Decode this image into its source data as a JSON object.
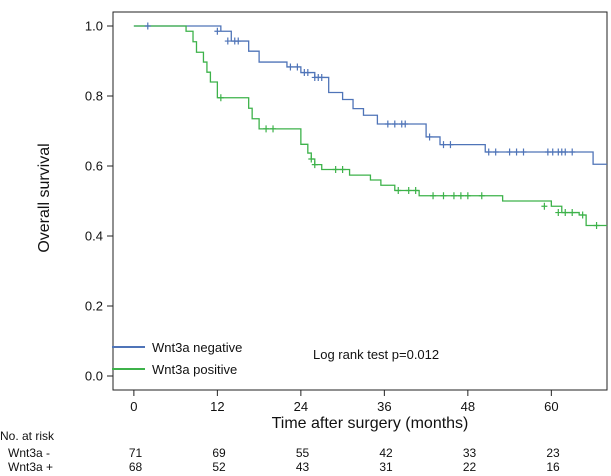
{
  "chart_data": {
    "type": "line",
    "subtype": "kaplan-meier",
    "xlabel": "Time after surgery (months)",
    "ylabel": "Overall survival",
    "xlim": [
      -3,
      68
    ],
    "ylim": [
      -0.04,
      1.04
    ],
    "x_ticks": [
      0,
      12,
      24,
      36,
      48,
      60
    ],
    "y_ticks": [
      0.0,
      0.2,
      0.4,
      0.6,
      0.8,
      1.0
    ],
    "x_tick_labels": [
      "0",
      "12",
      "24",
      "36",
      "48",
      "60"
    ],
    "y_tick_labels": [
      "0.0",
      "0.2",
      "0.4",
      "0.6",
      "0.8",
      "1.0"
    ],
    "grid": false,
    "legend_position": "bottom-left",
    "annotation": "Log rank test p=0.012",
    "series": [
      {
        "name": "Wnt3a negative",
        "color": "#4f74b8",
        "steps": [
          [
            0,
            1.0
          ],
          [
            12.5,
            0.985
          ],
          [
            14,
            0.957
          ],
          [
            16.5,
            0.928
          ],
          [
            18,
            0.897
          ],
          [
            22,
            0.883
          ],
          [
            24,
            0.867
          ],
          [
            26,
            0.853
          ],
          [
            28,
            0.81
          ],
          [
            30,
            0.79
          ],
          [
            31.5,
            0.764
          ],
          [
            33,
            0.745
          ],
          [
            35,
            0.72
          ],
          [
            42,
            0.683
          ],
          [
            44,
            0.661
          ],
          [
            50.5,
            0.64
          ],
          [
            64,
            0.64
          ],
          [
            66,
            0.605
          ]
        ],
        "censored": [
          [
            2,
            1.0
          ],
          [
            12,
            0.985
          ],
          [
            13.5,
            0.957
          ],
          [
            14.5,
            0.957
          ],
          [
            15,
            0.957
          ],
          [
            22.5,
            0.883
          ],
          [
            23.5,
            0.883
          ],
          [
            24.5,
            0.867
          ],
          [
            25,
            0.867
          ],
          [
            26,
            0.853
          ],
          [
            26.5,
            0.853
          ],
          [
            27,
            0.853
          ],
          [
            36.5,
            0.72
          ],
          [
            37.5,
            0.72
          ],
          [
            38.5,
            0.72
          ],
          [
            39,
            0.72
          ],
          [
            42.5,
            0.683
          ],
          [
            44.5,
            0.661
          ],
          [
            45.5,
            0.661
          ],
          [
            51,
            0.64
          ],
          [
            52,
            0.64
          ],
          [
            54,
            0.64
          ],
          [
            55,
            0.64
          ],
          [
            56,
            0.64
          ],
          [
            59.5,
            0.64
          ],
          [
            60.2,
            0.64
          ],
          [
            61,
            0.64
          ],
          [
            61.5,
            0.64
          ],
          [
            62,
            0.64
          ],
          [
            63,
            0.64
          ]
        ]
      },
      {
        "name": "Wnt3a positive",
        "color": "#3db24a",
        "steps": [
          [
            0,
            1.0
          ],
          [
            7.5,
            0.985
          ],
          [
            8.5,
            0.955
          ],
          [
            9,
            0.925
          ],
          [
            10,
            0.897
          ],
          [
            10.5,
            0.868
          ],
          [
            11,
            0.84
          ],
          [
            12,
            0.795
          ],
          [
            16.5,
            0.765
          ],
          [
            17,
            0.735
          ],
          [
            18,
            0.706
          ],
          [
            24,
            0.662
          ],
          [
            25,
            0.637
          ],
          [
            25.5,
            0.62
          ],
          [
            26,
            0.604
          ],
          [
            27,
            0.59
          ],
          [
            31,
            0.574
          ],
          [
            34,
            0.56
          ],
          [
            35.5,
            0.545
          ],
          [
            37.5,
            0.53
          ],
          [
            41,
            0.515
          ],
          [
            53,
            0.5
          ],
          [
            60,
            0.485
          ],
          [
            61.5,
            0.467
          ],
          [
            64,
            0.46
          ],
          [
            65,
            0.43
          ]
        ],
        "censored": [
          [
            12.5,
            0.795
          ],
          [
            19,
            0.706
          ],
          [
            20,
            0.706
          ],
          [
            25.5,
            0.62
          ],
          [
            26,
            0.604
          ],
          [
            29,
            0.59
          ],
          [
            30,
            0.59
          ],
          [
            38,
            0.53
          ],
          [
            39.5,
            0.53
          ],
          [
            40.5,
            0.53
          ],
          [
            43,
            0.515
          ],
          [
            44.5,
            0.515
          ],
          [
            46,
            0.515
          ],
          [
            47,
            0.515
          ],
          [
            48,
            0.515
          ],
          [
            50,
            0.515
          ],
          [
            59,
            0.485
          ],
          [
            61,
            0.467
          ],
          [
            62,
            0.467
          ],
          [
            63,
            0.467
          ],
          [
            64.5,
            0.46
          ],
          [
            66.5,
            0.43
          ]
        ]
      }
    ],
    "risk_table": {
      "title": "No. at risk",
      "groups": [
        {
          "label": "Wnt3a -",
          "values": [
            "71",
            "69",
            "55",
            "42",
            "33",
            "23"
          ]
        },
        {
          "label": "Wnt3a +",
          "values": [
            "68",
            "52",
            "43",
            "31",
            "22",
            "16"
          ]
        }
      ]
    }
  }
}
